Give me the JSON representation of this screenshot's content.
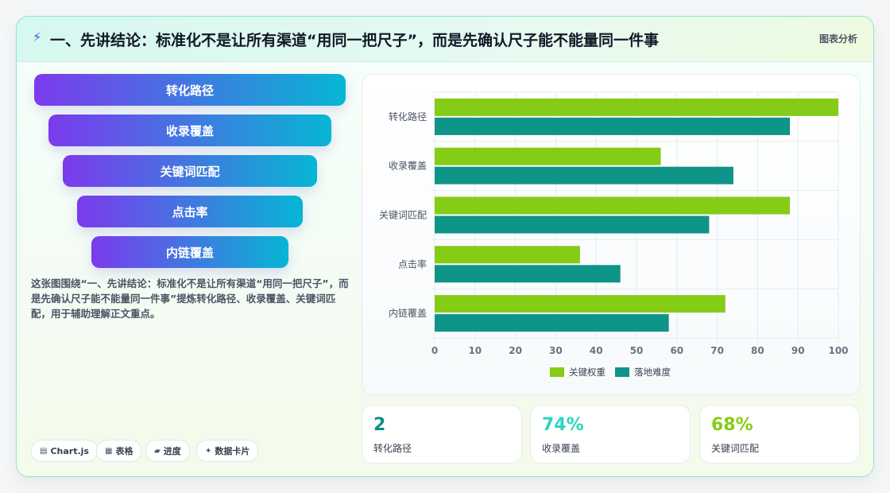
{
  "header": {
    "icon": "bolt-icon",
    "title": "一、先讲结论：标准化不是让所有渠道“用同一把尺子”，而是先确认尺子能不能量同一件事",
    "tag": "图表分析"
  },
  "funnel": {
    "steps": [
      "转化路径",
      "收录覆盖",
      "关键词匹配",
      "点击率",
      "内链覆盖"
    ],
    "caption": "这张图围绕“一、先讲结论：标准化不是让所有渠道“用同一把尺子”，而是先确认尺子能不能量同一件事”提炼转化路径、收录覆盖、关键词匹配，用于辅助理解正文重点。"
  },
  "chips": [
    {
      "icon": "▤",
      "label": "Chart.js"
    },
    {
      "icon": "▦",
      "label": "表格"
    },
    {
      "icon": "▰",
      "label": "进度"
    },
    {
      "icon": "✦",
      "label": "数据卡片"
    }
  ],
  "stats": [
    {
      "value": "2",
      "label": "转化路径",
      "color": "#0f8f83"
    },
    {
      "value": "74%",
      "label": "收录覆盖",
      "color": "#2dd4bf"
    },
    {
      "value": "68%",
      "label": "关键词匹配",
      "color": "#84cc16"
    }
  ],
  "colors": {
    "series1": "#84cc16",
    "series2": "#0f9488"
  },
  "chart_data": {
    "type": "bar",
    "orientation": "horizontal",
    "categories": [
      "转化路径",
      "收录覆盖",
      "关键词匹配",
      "点击率",
      "内链覆盖"
    ],
    "series": [
      {
        "name": "关键权重",
        "values": [
          100,
          56,
          88,
          36,
          72
        ]
      },
      {
        "name": "落地难度",
        "values": [
          88,
          74,
          68,
          46,
          58
        ]
      }
    ],
    "xlim": [
      0,
      100
    ],
    "xticks": [
      0,
      10,
      20,
      30,
      40,
      50,
      60,
      70,
      80,
      90,
      100
    ],
    "grid": true,
    "legend": "bottom"
  }
}
